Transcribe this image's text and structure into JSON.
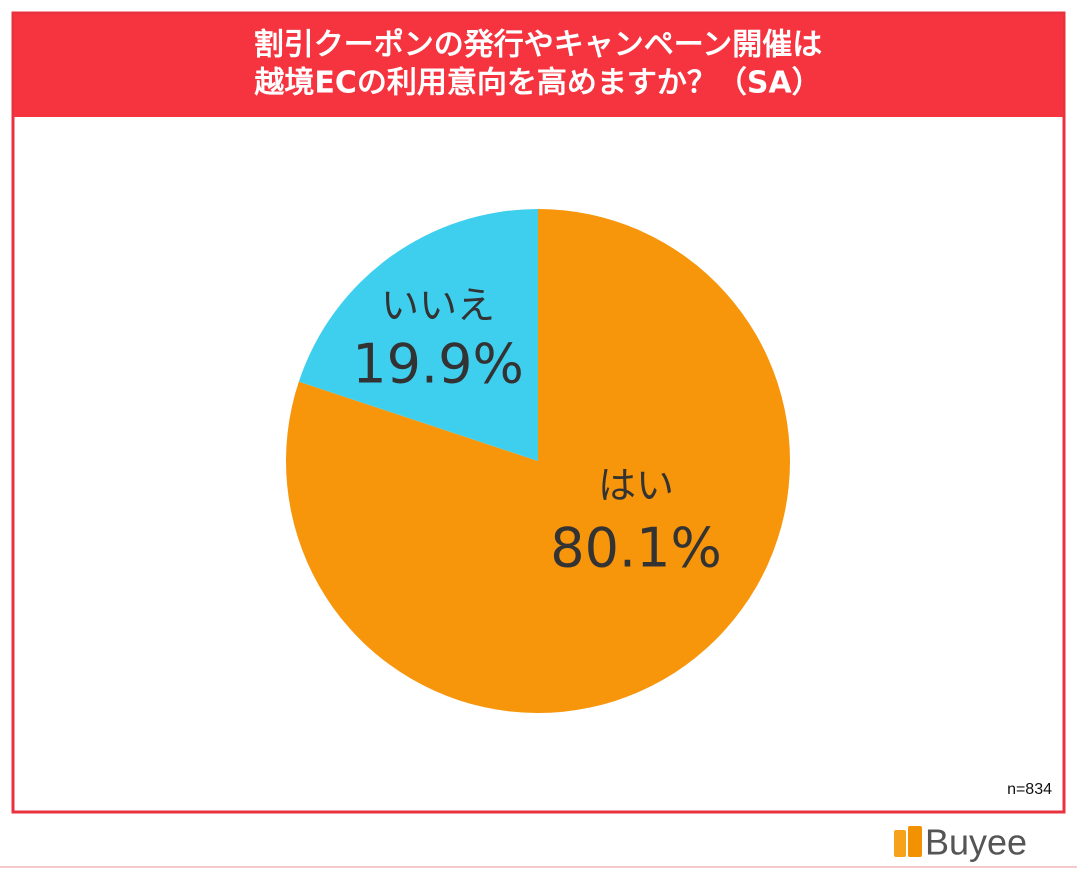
{
  "chart_data": {
    "type": "pie",
    "title": [
      "割引クーポンの発行やキャンペーン開催は",
      "越境ECの利用意向を高めますか？（SA）"
    ],
    "categories": [
      "はい",
      "いいえ"
    ],
    "values": [
      80.1,
      19.9
    ],
    "value_labels": [
      "80.1%",
      "19.9%"
    ],
    "colors": [
      "#f7950b",
      "#3fcfee"
    ],
    "note": "n=834"
  },
  "footer": {
    "logo": "Buyee"
  }
}
